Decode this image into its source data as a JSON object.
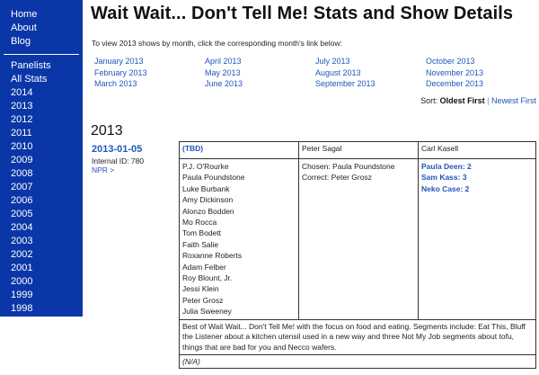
{
  "sidebar": {
    "top_links": [
      "Home",
      "About",
      "Blog"
    ],
    "links": [
      "Panelists",
      "All Stats",
      "2014",
      "2013",
      "2012",
      "2011",
      "2010",
      "2009",
      "2008",
      "2007",
      "2006",
      "2005",
      "2004",
      "2003",
      "2002",
      "2001",
      "2000",
      "1999",
      "1998"
    ]
  },
  "page": {
    "title": "Wait Wait... Don't Tell Me! Stats and Show Details",
    "intro": "To view 2013 shows by month, click the corresponding month's link below:",
    "months": [
      "January 2013",
      "April 2013",
      "July 2013",
      "October 2013",
      "February 2013",
      "May 2013",
      "August 2013",
      "November 2013",
      "March 2013",
      "June 2013",
      "September 2013",
      "December 2013"
    ],
    "sort": {
      "label": "Sort:",
      "active": "Oldest First",
      "separator": "|",
      "other": "Newest First"
    },
    "year_heading": "2013"
  },
  "show": {
    "date": "2013-01-05",
    "internal_id": "Internal ID: 780",
    "npr_link": "NPR >",
    "guest_host": "(TBD)",
    "host": "Peter Sagal",
    "scorekeeper": "Carl Kasell",
    "panelists": [
      "P.J. O'Rourke",
      "Paula Poundstone",
      "Luke Burbank",
      "Amy Dickinson",
      "Alonzo Bodden",
      "Mo Rocca",
      "Tom Bodett",
      "Faith Salie",
      "Roxanne Roberts",
      "Adam Felber",
      "Roy Blount, Jr.",
      "Jessi Klein",
      "Peter Grosz",
      "Julia Sweeney"
    ],
    "bluff": {
      "chosen": "Chosen: Paula Poundstone",
      "correct": "Correct: Peter Grosz"
    },
    "guests": [
      "Paula Deen: 2",
      "Sam Kass: 3",
      "Neko Case: 2"
    ],
    "description": "Best of Wait Wait... Don't Tell Me! with the focus on food and eating. Segments include: Eat This, Bluff the Listener about a kitchen utensil used in a new way and three Not My Job segments about tofu, things that are bad for you and Necco wafers.",
    "notes": "(N/A)"
  }
}
